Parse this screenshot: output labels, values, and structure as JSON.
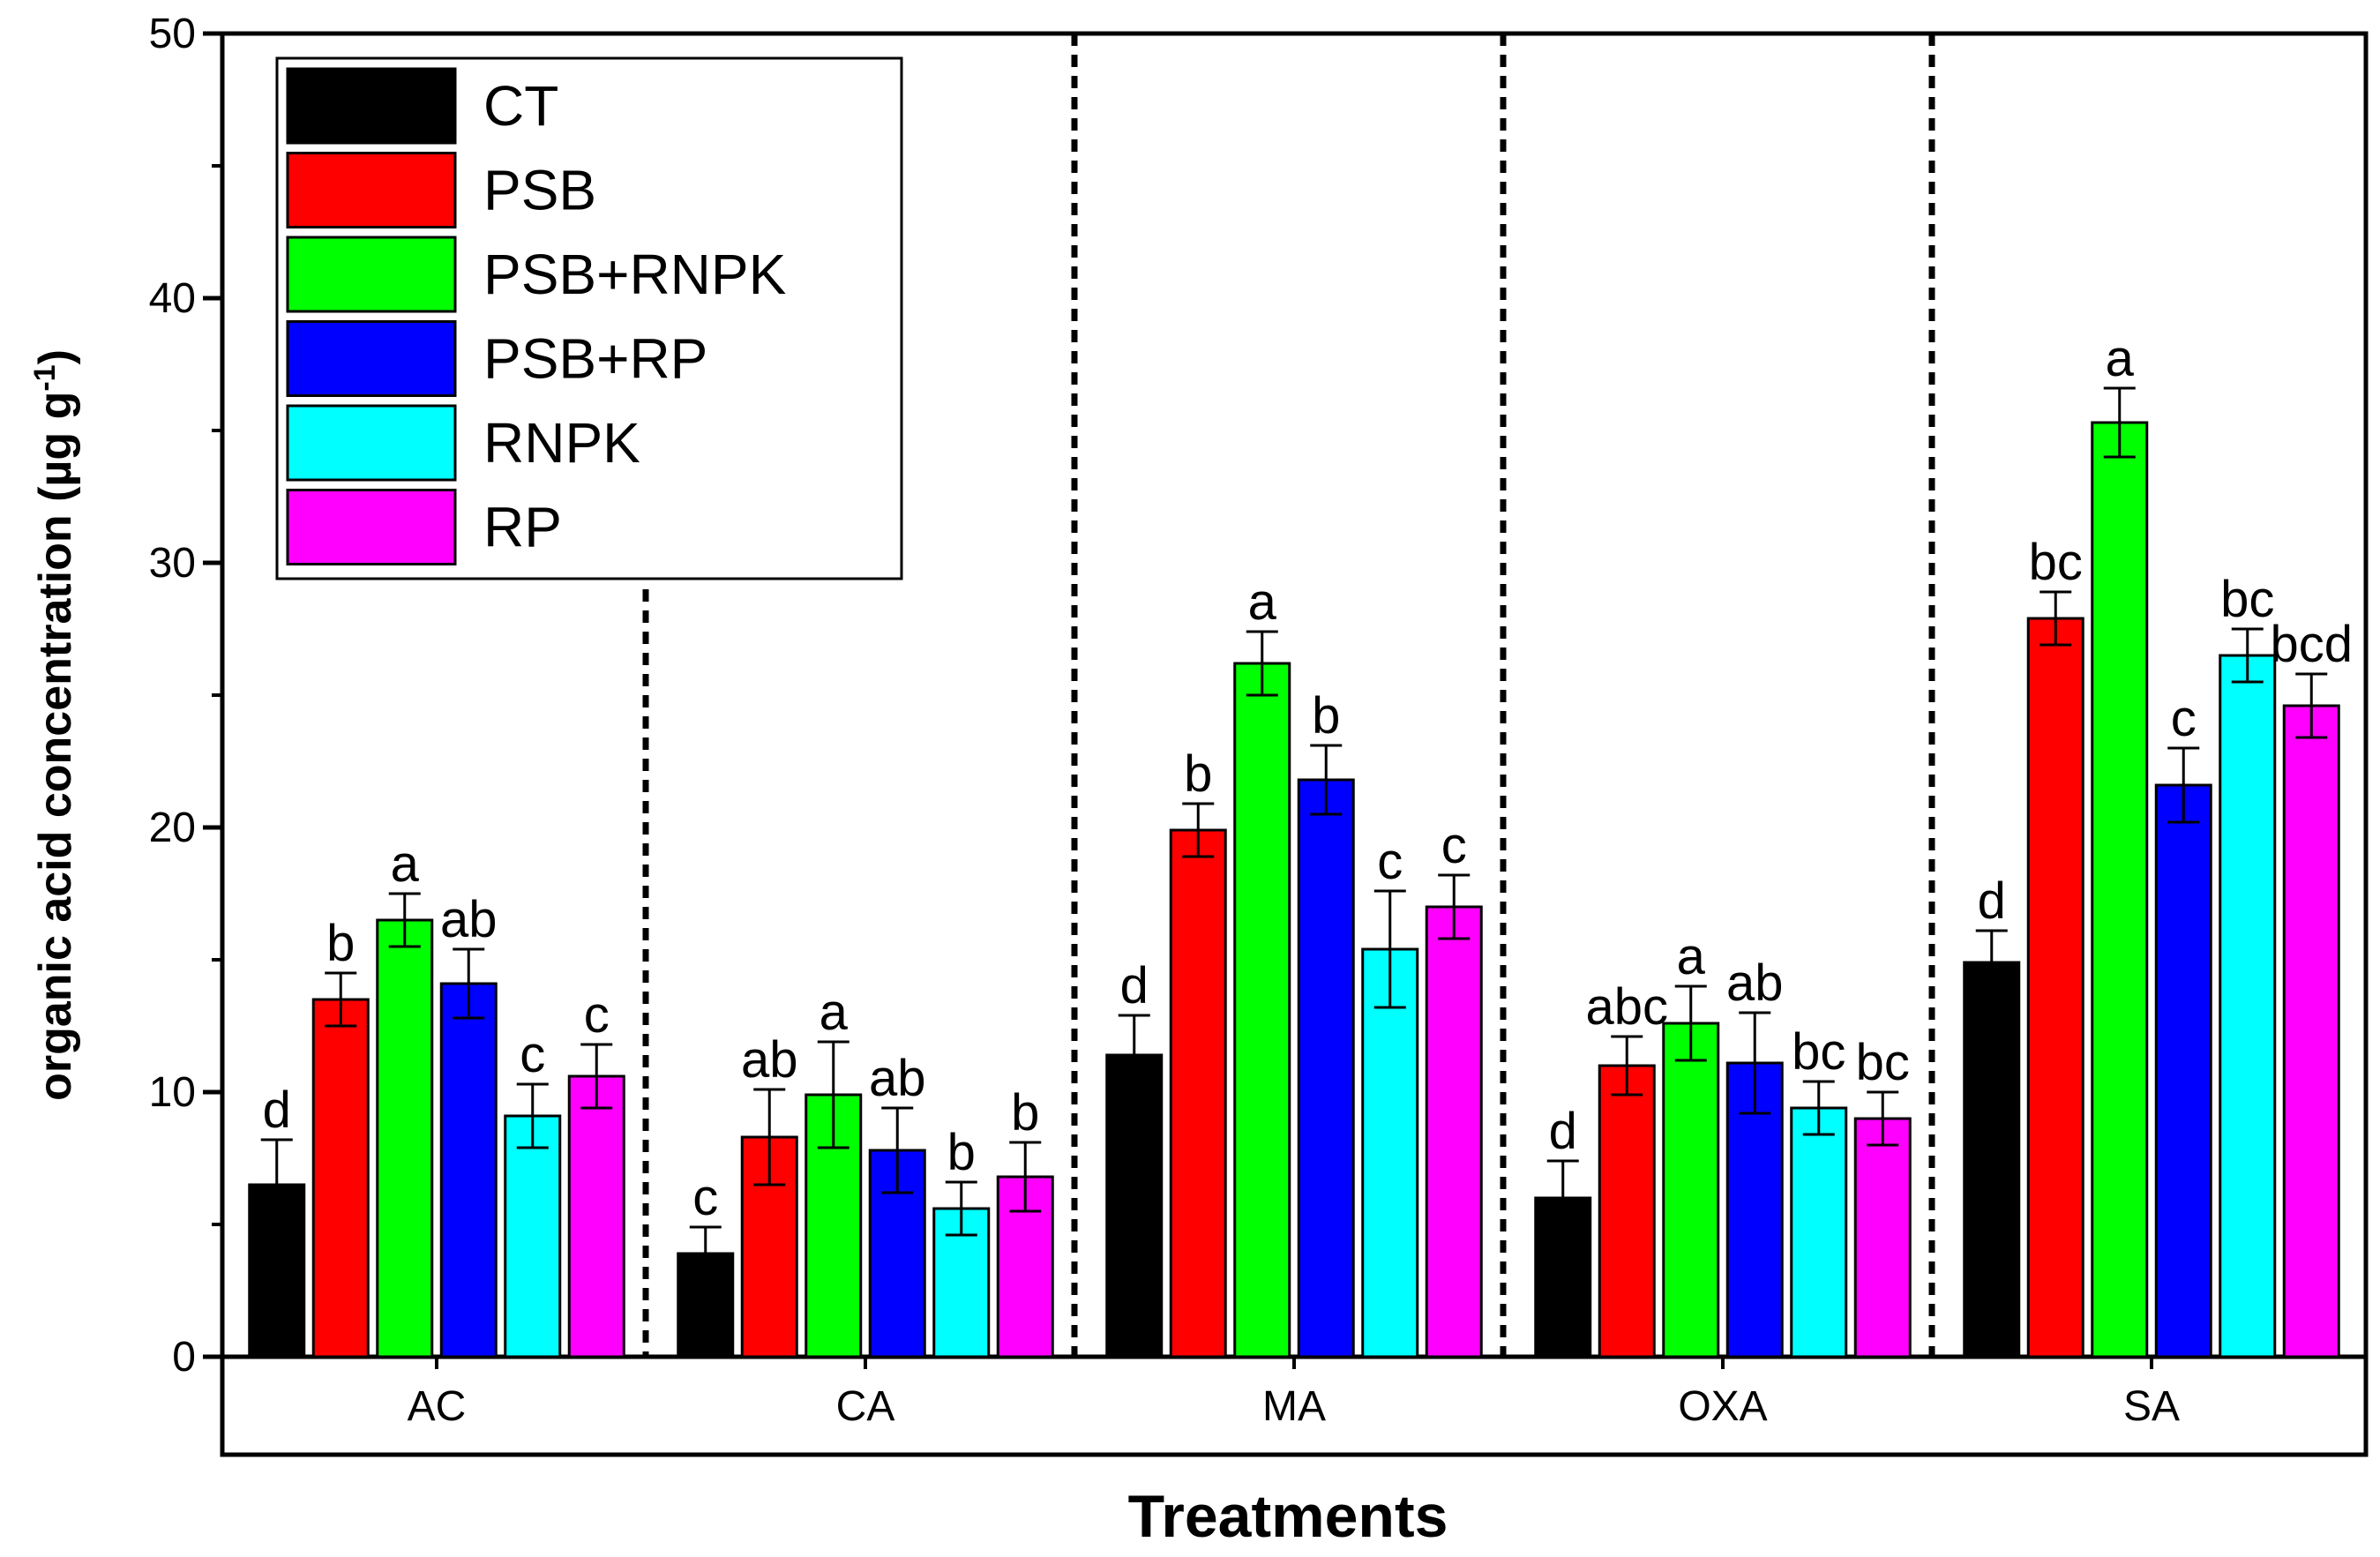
{
  "chart_data": {
    "type": "bar",
    "xlabel": "Treatments",
    "ylabel": {
      "main": "organic acid concentration (µg g",
      "superscript": "-1",
      "close": ")"
    },
    "ylim": [
      0,
      50
    ],
    "yticks": [
      "0",
      "10",
      "20",
      "30",
      "40",
      "50"
    ],
    "grid": false,
    "legend_position": "top-left",
    "categories": [
      "AC",
      "CA",
      "MA",
      "OXA",
      "SA"
    ],
    "series": [
      {
        "name": "CT",
        "color": "#000000",
        "values": [
          6.5,
          3.9,
          11.4,
          6.0,
          14.9
        ],
        "errors": [
          1.7,
          1.0,
          1.5,
          1.4,
          1.2
        ],
        "letters": [
          "d",
          "c",
          "d",
          "d",
          "d"
        ]
      },
      {
        "name": "PSB",
        "color": "#ff0000",
        "values": [
          13.5,
          8.3,
          19.9,
          11.0,
          27.9
        ],
        "errors": [
          1.0,
          1.8,
          1.0,
          1.1,
          1.0
        ],
        "letters": [
          "b",
          "ab",
          "b",
          "abc",
          "bc"
        ]
      },
      {
        "name": "PSB+RNPK",
        "color": "#00ff00",
        "values": [
          16.5,
          9.9,
          26.2,
          12.6,
          35.3
        ],
        "errors": [
          1.0,
          2.0,
          1.2,
          1.4,
          1.3
        ],
        "letters": [
          "a",
          "a",
          "a",
          "a",
          "a"
        ]
      },
      {
        "name": "PSB+RP",
        "color": "#0000ff",
        "values": [
          14.1,
          7.8,
          21.8,
          11.1,
          21.6
        ],
        "errors": [
          1.3,
          1.6,
          1.3,
          1.9,
          1.4
        ],
        "letters": [
          "ab",
          "ab",
          "b",
          "ab",
          "c"
        ]
      },
      {
        "name": "RNPK",
        "color": "#00ffff",
        "values": [
          9.1,
          5.6,
          15.4,
          9.4,
          26.5
        ],
        "errors": [
          1.2,
          1.0,
          2.2,
          1.0,
          1.0
        ],
        "letters": [
          "c",
          "b",
          "c",
          "bc",
          "bc"
        ]
      },
      {
        "name": "RP",
        "color": "#ff00ff",
        "values": [
          10.6,
          6.8,
          17.0,
          9.0,
          24.6
        ],
        "errors": [
          1.2,
          1.3,
          1.2,
          1.0,
          1.2
        ],
        "letters": [
          "c",
          "b",
          "c",
          "bc",
          "bcd"
        ]
      }
    ]
  }
}
